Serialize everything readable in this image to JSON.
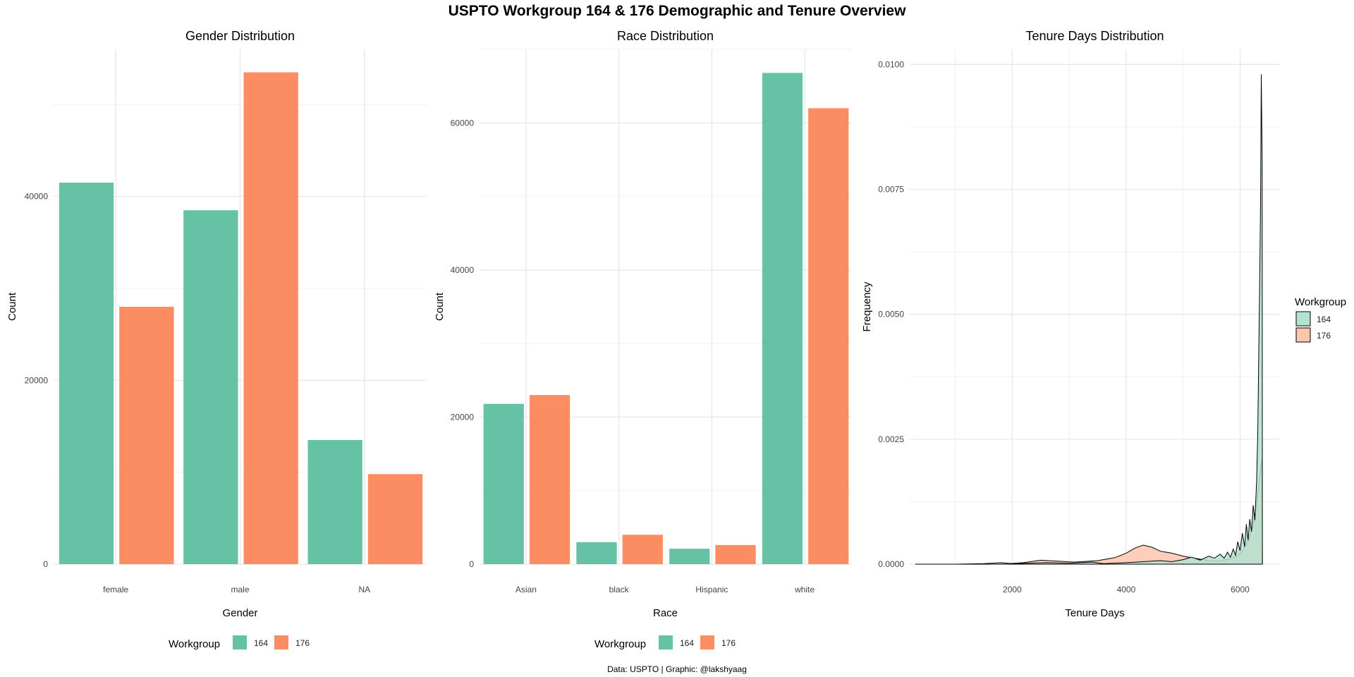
{
  "title": "USPTO Workgroup 164 & 176 Demographic and Tenure Overview",
  "caption": "Data: USPTO | Graphic: @lakshyaag",
  "colors": {
    "164": "#66c2a5",
    "176": "#fc8d62",
    "density_164": "#b3e2cf",
    "density_176": "#fdc5ae"
  },
  "chart_data": [
    {
      "type": "bar",
      "title": "Gender Distribution",
      "xlabel": "Gender",
      "ylabel": "Count",
      "categories": [
        "female",
        "male",
        "NA"
      ],
      "series": [
        {
          "name": "164",
          "values": [
            41500,
            38500,
            13500
          ]
        },
        {
          "name": "176",
          "values": [
            28000,
            53500,
            9800
          ]
        }
      ],
      "ylim": [
        0,
        56000
      ],
      "yticks": [
        0,
        20000,
        40000
      ],
      "legend": {
        "title": "Workgroup",
        "position": "bottom",
        "entries": [
          "164",
          "176"
        ]
      }
    },
    {
      "type": "bar",
      "title": "Race Distribution",
      "xlabel": "Race",
      "ylabel": "Count",
      "categories": [
        "Asian",
        "black",
        "Hispanic",
        "white"
      ],
      "series": [
        {
          "name": "164",
          "values": [
            21800,
            3000,
            2100,
            66800
          ]
        },
        {
          "name": "176",
          "values": [
            23000,
            4000,
            2600,
            62000
          ]
        }
      ],
      "ylim": [
        0,
        70000
      ],
      "yticks": [
        0,
        20000,
        40000,
        60000
      ],
      "legend": {
        "title": "Workgroup",
        "position": "bottom",
        "entries": [
          "164",
          "176"
        ]
      }
    },
    {
      "type": "area",
      "title": "Tenure Days Distribution",
      "xlabel": "Tenure Days",
      "ylabel": "Frequency",
      "xticks": [
        2000,
        4000,
        6000
      ],
      "yticks": [
        "0.0000",
        "0.0025",
        "0.0050",
        "0.0075",
        "0.0100"
      ],
      "xlim": [
        200,
        6700
      ],
      "ylim": [
        0,
        0.0103
      ],
      "series": [
        {
          "name": "164",
          "points": [
            [
              300,
              0
            ],
            [
              1000,
              0
            ],
            [
              1500,
              1e-05
            ],
            [
              1800,
              3e-05
            ],
            [
              2000,
              1e-05
            ],
            [
              2300,
              2e-05
            ],
            [
              2600,
              3e-05
            ],
            [
              3000,
              2e-05
            ],
            [
              3400,
              4e-05
            ],
            [
              3600,
              1e-05
            ],
            [
              4000,
              3e-05
            ],
            [
              4300,
              5e-05
            ],
            [
              4600,
              7e-05
            ],
            [
              4800,
              5e-05
            ],
            [
              5000,
              9e-05
            ],
            [
              5150,
              0.00014
            ],
            [
              5300,
              8e-05
            ],
            [
              5450,
              0.00016
            ],
            [
              5550,
              0.00012
            ],
            [
              5650,
              0.0002
            ],
            [
              5720,
              0.00012
            ],
            [
              5780,
              0.00024
            ],
            [
              5830,
              0.00014
            ],
            [
              5880,
              0.0003
            ],
            [
              5920,
              0.00018
            ],
            [
              5960,
              0.00045
            ],
            [
              6000,
              0.00027
            ],
            [
              6040,
              0.00062
            ],
            [
              6080,
              0.00035
            ],
            [
              6110,
              0.0008
            ],
            [
              6140,
              0.00048
            ],
            [
              6170,
              0.0009
            ],
            [
              6200,
              0.00065
            ],
            [
              6230,
              0.00118
            ],
            [
              6260,
              0.00088
            ],
            [
              6290,
              0.00165
            ],
            [
              6310,
              0.0026
            ],
            [
              6330,
              0.0044
            ],
            [
              6350,
              0.0062
            ],
            [
              6360,
              0.0073
            ],
            [
              6372,
              0.0098
            ],
            [
              6380,
              0.0089
            ],
            [
              6388,
              0.0081
            ],
            [
              6392,
              0.0
            ]
          ]
        },
        {
          "name": "176",
          "points": [
            [
              300,
              0
            ],
            [
              1800,
              0
            ],
            [
              2200,
              3e-05
            ],
            [
              2500,
              8e-05
            ],
            [
              2800,
              6e-05
            ],
            [
              3100,
              4e-05
            ],
            [
              3500,
              7e-05
            ],
            [
              3800,
              0.00013
            ],
            [
              4000,
              0.00022
            ],
            [
              4150,
              0.00032
            ],
            [
              4300,
              0.00038
            ],
            [
              4450,
              0.00034
            ],
            [
              4600,
              0.00026
            ],
            [
              4800,
              0.00022
            ],
            [
              5000,
              0.00016
            ],
            [
              5200,
              0.00012
            ],
            [
              5400,
              8e-05
            ],
            [
              5600,
              6e-05
            ],
            [
              5800,
              0.0001
            ],
            [
              5950,
              0.00016
            ],
            [
              6050,
              0.00028
            ],
            [
              6150,
              0.00048
            ],
            [
              6230,
              0.00078
            ],
            [
              6290,
              0.0012
            ],
            [
              6330,
              0.0016
            ],
            [
              6360,
              0.0019
            ],
            [
              6385,
              0.0021
            ],
            [
              6392,
              0.0
            ]
          ]
        }
      ],
      "legend": {
        "title": "Workgroup",
        "position": "right",
        "entries": [
          "164",
          "176"
        ]
      }
    }
  ]
}
